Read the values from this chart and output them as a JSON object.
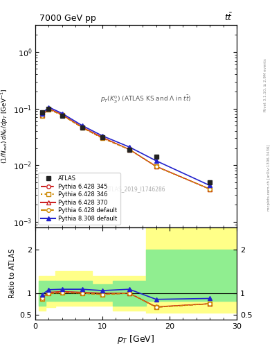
{
  "title_top": "7000 GeV pp",
  "title_top_right": "tt",
  "watermark": "ATLAS_2019_I1746286",
  "pt_centers": [
    1.0,
    2.0,
    4.0,
    7.0,
    10.0,
    14.0,
    18.0,
    26.0
  ],
  "pt_edges": [
    0.5,
    1.5,
    3.0,
    5.5,
    8.5,
    11.5,
    16.5,
    21.5,
    30.5
  ],
  "atlas_y": [
    0.085,
    0.098,
    0.075,
    0.046,
    0.031,
    0.019,
    0.014,
    0.005
  ],
  "py6_345_y": [
    0.075,
    0.098,
    0.077,
    0.046,
    0.03,
    0.019,
    0.0095,
    0.0038
  ],
  "py6_346_y": [
    0.074,
    0.097,
    0.076,
    0.046,
    0.03,
    0.019,
    0.0095,
    0.0038
  ],
  "py6_370_y": [
    0.076,
    0.1,
    0.078,
    0.047,
    0.031,
    0.019,
    0.0096,
    0.0038
  ],
  "py6_def_y": [
    0.075,
    0.097,
    0.076,
    0.046,
    0.03,
    0.019,
    0.0095,
    0.0038
  ],
  "py8_def_y": [
    0.082,
    0.106,
    0.082,
    0.05,
    0.033,
    0.021,
    0.012,
    0.0044
  ],
  "ratio_py6_345": [
    0.88,
    1.0,
    1.03,
    1.0,
    0.97,
    1.0,
    0.68,
    0.76
  ],
  "ratio_py6_346": [
    0.87,
    0.99,
    1.01,
    1.0,
    0.97,
    1.0,
    0.68,
    0.76
  ],
  "ratio_py6_370": [
    0.9,
    1.02,
    1.04,
    1.02,
    1.0,
    1.0,
    0.69,
    0.76
  ],
  "ratio_py6_def": [
    0.88,
    0.99,
    1.01,
    1.0,
    0.97,
    1.0,
    0.68,
    0.76
  ],
  "ratio_py8_def": [
    0.97,
    1.08,
    1.09,
    1.09,
    1.06,
    1.09,
    0.86,
    0.88
  ],
  "yellow_lo": [
    0.6,
    0.68,
    0.72,
    0.72,
    0.72,
    0.6,
    0.55,
    0.55
  ],
  "yellow_hi": [
    1.4,
    1.4,
    1.5,
    1.5,
    1.4,
    1.4,
    2.5,
    2.5
  ],
  "green_lo": [
    0.72,
    0.83,
    0.83,
    0.83,
    0.83,
    0.72,
    0.83,
    0.83
  ],
  "green_hi": [
    1.28,
    1.28,
    1.28,
    1.28,
    1.2,
    1.28,
    2.0,
    2.0
  ],
  "color_atlas": "#222222",
  "color_py6_345": "#cc2222",
  "color_py6_346": "#cc8800",
  "color_py6_370": "#cc2222",
  "color_py6_def": "#cc8800",
  "color_py8_def": "#2222cc",
  "color_green": "#90ee90",
  "color_yellow": "#ffff88",
  "xlim": [
    0,
    30
  ],
  "ylim_main": [
    0.0008,
    3.0
  ],
  "ylim_ratio": [
    0.4,
    2.5
  ],
  "ratio_yticks": [
    0.5,
    1.0,
    2.0
  ]
}
